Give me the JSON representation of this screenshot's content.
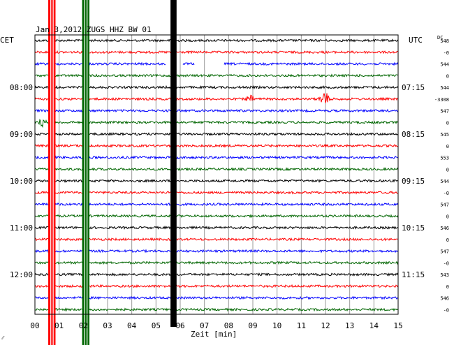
{
  "chart_data": {
    "type": "line",
    "title": "Jan 3,2012  ZUGS HHZ BW 01",
    "left_axis_label": "CET",
    "right_axis_label": "UTC",
    "dc_label": "DC",
    "xlabel": "Zeit [min]",
    "x_range": [
      0,
      15
    ],
    "x_ticks": [
      "00",
      "01",
      "02",
      "03",
      "04",
      "05",
      "06",
      "07",
      "08",
      "09",
      "10",
      "11",
      "12",
      "13",
      "14",
      "15"
    ],
    "trace_colors": [
      "#000000",
      "#ff0000",
      "#0000ff",
      "#006600"
    ],
    "num_traces": 24,
    "cet_labels": [
      {
        "trace": 4,
        "label": "08:00"
      },
      {
        "trace": 8,
        "label": "09:00"
      },
      {
        "trace": 12,
        "label": "10:00"
      },
      {
        "trace": 16,
        "label": "11:00"
      },
      {
        "trace": 20,
        "label": "12:00"
      }
    ],
    "utc_labels": [
      {
        "trace": 4,
        "label": "07:15"
      },
      {
        "trace": 8,
        "label": "08:15"
      },
      {
        "trace": 12,
        "label": "09:15"
      },
      {
        "trace": 16,
        "label": "10:15"
      },
      {
        "trace": 20,
        "label": "11:15"
      }
    ],
    "dc_values": [
      "548",
      "-0",
      "544",
      "0",
      "544",
      "-3308",
      "547",
      "0",
      "545",
      "0",
      "553",
      "0",
      "544",
      "-0",
      "547",
      "0",
      "546",
      "0",
      "547",
      "-0",
      "543",
      "0",
      "546",
      "-0"
    ],
    "events": [
      {
        "trace": 5,
        "minute": 8.9,
        "amplitude": 3
      },
      {
        "trace": 5,
        "minute": 11.95,
        "amplitude": 6
      },
      {
        "trace": 7,
        "minute": 0.3,
        "amplitude": 3
      }
    ],
    "gaps": [
      {
        "trace": 2,
        "from_minute": 5.4,
        "to_minute": 6.1
      },
      {
        "trace": 2,
        "from_minute": 6.6,
        "to_minute": 7.8
      }
    ],
    "vertical_bands": [
      {
        "color": "#ff0000",
        "from_minute": 0.55,
        "to_minute": 0.85,
        "outer": true
      },
      {
        "color": "#006600",
        "from_minute": 1.95,
        "to_minute": 2.25,
        "outer": true
      },
      {
        "color": "#000000",
        "from_minute": 5.6,
        "to_minute": 5.85,
        "outer": false
      }
    ],
    "footer_mark": "⁄⁄"
  }
}
